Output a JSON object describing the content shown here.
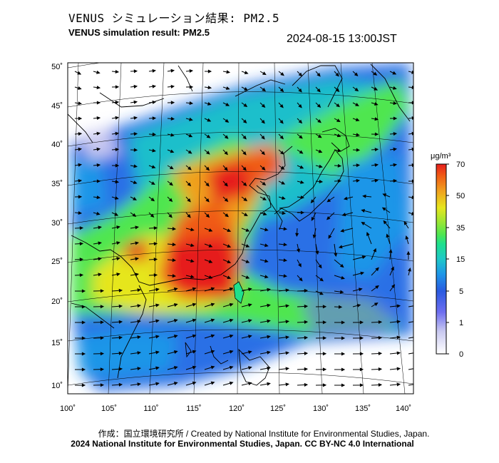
{
  "title_jp": "VENUS シミュレーション結果: PM2.5",
  "title_en": "VENUS simulation result: PM2.5",
  "timestamp": "2024-08-15 13:00JST",
  "map": {
    "lon_ticks": [
      "100˚",
      "105˚",
      "110˚",
      "115˚",
      "120˚",
      "125˚",
      "130˚",
      "135˚",
      "140˚"
    ],
    "lat_ticks": [
      "10˚",
      "15˚",
      "20˚",
      "25˚",
      "30˚",
      "35˚",
      "40˚",
      "45˚",
      "50˚"
    ],
    "lon_range": [
      100,
      141
    ],
    "lat_range": [
      9,
      50.5
    ]
  },
  "colorbar": {
    "unit": "μg/m³",
    "tick_labels": [
      "0",
      "1",
      "5",
      "15",
      "35",
      "50",
      "70"
    ],
    "colors": [
      "#ffffff",
      "#c8c8f0",
      "#6e6ef0",
      "#2a5ae0",
      "#1e96e8",
      "#1ec8c8",
      "#1ee08c",
      "#50e650",
      "#a0e632",
      "#e6e61e",
      "#f0a01e",
      "#f05a14",
      "#e61e1e"
    ]
  },
  "credits": {
    "line1": "作成：国立環境研究所 / Created by National Institute for Environmental Studies, Japan.",
    "line2": "2024 National Institute for Environmental Studies, Japan. CC BY-NC 4.0 International"
  }
}
